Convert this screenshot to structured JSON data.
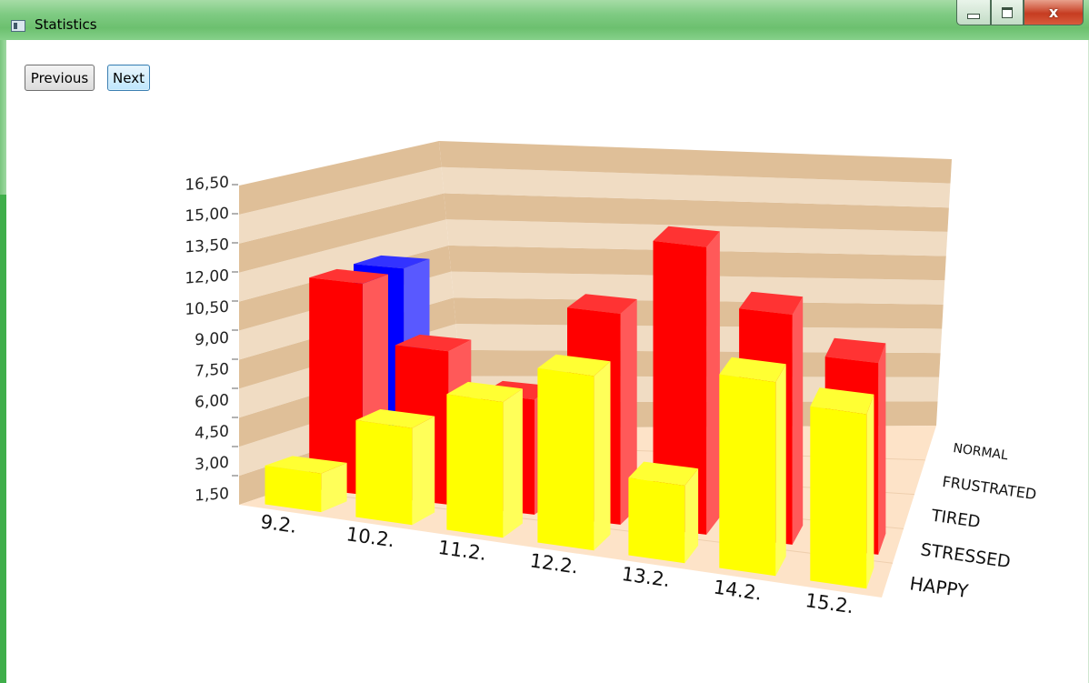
{
  "window": {
    "title": "Statistics",
    "close_glyph": "x",
    "icons": [
      "app-icon",
      "minimize-icon",
      "maximize-icon",
      "close-icon"
    ]
  },
  "nav": {
    "previous_label": "Previous",
    "next_label": "Next"
  },
  "chart_data": {
    "type": "bar",
    "variant": "3d-clustered-columns",
    "title": "",
    "xlabel": "",
    "ylabel": "",
    "categories": [
      "9.2.",
      "10.2.",
      "11.2.",
      "12.2.",
      "13.2.",
      "14.2.",
      "15.2."
    ],
    "depth_categories": [
      "NORMAL",
      "FRUSTRATED",
      "TIRED",
      "STRESSED",
      "HAPPY"
    ],
    "y_ticks": [
      "1,50",
      "3,00",
      "4,50",
      "6,00",
      "7,50",
      "9,00",
      "10,50",
      "12,00",
      "13,50",
      "15,00",
      "16,50"
    ],
    "ylim": [
      0,
      16.5
    ],
    "grid": true,
    "series": [
      {
        "name": "NORMAL",
        "color": "#008000",
        "values": [
          0,
          0,
          0,
          0,
          0,
          0,
          0
        ]
      },
      {
        "name": "FRUSTRATED",
        "color": "#808080",
        "values": [
          0,
          0,
          0,
          0,
          0,
          0,
          0
        ]
      },
      {
        "name": "TIRED",
        "color": "#0000ff",
        "values": [
          11,
          0,
          0,
          0,
          0,
          0,
          0
        ]
      },
      {
        "name": "STRESSED",
        "color": "#ff0000",
        "values": [
          11,
          8,
          6,
          11,
          15,
          12,
          10
        ]
      },
      {
        "name": "HAPPY",
        "color": "#ffff00",
        "values": [
          2,
          5,
          7,
          9,
          4,
          10,
          9
        ]
      }
    ],
    "colors": {
      "floor": "#fde3c8",
      "wall_band_dark": "#dfbf98",
      "wall_band_light": "#f0dcc3"
    }
  }
}
